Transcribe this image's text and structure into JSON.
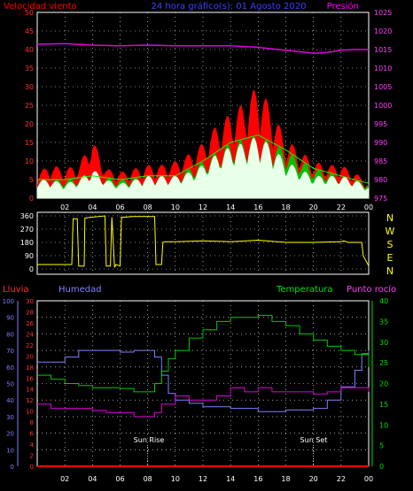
{
  "chart_data": [
    {
      "type": "line",
      "title": "24 hora gráfico(s): 01 Agosto 2020",
      "left_label": "Velocidad viento",
      "right_label": "Presión",
      "x_ticks": [
        "02",
        "04",
        "06",
        "08",
        "10",
        "12",
        "14",
        "16",
        "18",
        "20",
        "22",
        "00"
      ],
      "y_left_ticks": [
        "0",
        "5",
        "10",
        "15",
        "20",
        "25",
        "30",
        "35",
        "40",
        "45",
        "50"
      ],
      "y_right_ticks": [
        "975",
        "980",
        "985",
        "990",
        "995",
        "1000",
        "1005",
        "1010",
        "1015",
        "1020",
        "1025"
      ],
      "ylim_left": [
        0,
        50
      ],
      "ylim_right": [
        975,
        1025
      ],
      "series": [
        {
          "name": "Presión",
          "color": "#e000e0",
          "axis": "right",
          "x": [
            0,
            2,
            4,
            6,
            8,
            10,
            12,
            14,
            16,
            17,
            18,
            19,
            20,
            21,
            22,
            23,
            24
          ],
          "y": [
            1016.4,
            1016.6,
            1016.2,
            1016.0,
            1016.2,
            1016.0,
            1016.0,
            1016.0,
            1015.6,
            1015.2,
            1014.8,
            1014.4,
            1014.0,
            1014.2,
            1014.8,
            1015.0,
            1015.0
          ]
        },
        {
          "color": "#ff0000",
          "axis": "left",
          "kind": "gust",
          "x": [
            0,
            1,
            2,
            3,
            4,
            5,
            6,
            7,
            8,
            9,
            10,
            11,
            12,
            13,
            14,
            15,
            16,
            17,
            18,
            19,
            20,
            21,
            22,
            23,
            24
          ],
          "y": [
            7,
            9,
            8,
            9,
            16,
            8,
            7,
            8,
            9,
            9,
            10,
            12,
            15,
            20,
            23,
            26,
            31,
            24,
            16,
            13,
            10,
            9,
            9,
            7,
            4
          ]
        },
        {
          "color": "#00e000",
          "axis": "left",
          "kind": "average",
          "x": [
            0,
            2,
            4,
            6,
            8,
            10,
            12,
            14,
            16,
            18,
            20,
            22,
            24
          ],
          "y": [
            5,
            5,
            6,
            5,
            6,
            6,
            10,
            15,
            17,
            13,
            8,
            6,
            4
          ]
        },
        {
          "color": "#e8ffe8",
          "axis": "left",
          "kind": "speed",
          "x": [
            0,
            1,
            2,
            3,
            4,
            5,
            6,
            7,
            8,
            9,
            10,
            11,
            12,
            13,
            14,
            15,
            16,
            17,
            18,
            19,
            20,
            21,
            22,
            23,
            24
          ],
          "y": [
            5,
            5,
            4,
            5,
            8,
            5,
            4,
            5,
            6,
            6,
            6,
            7,
            9,
            12,
            14,
            15,
            17,
            14,
            10,
            8,
            6,
            6,
            6,
            5,
            3
          ]
        }
      ]
    },
    {
      "type": "line",
      "y_ticks": [
        "360",
        "270",
        "180",
        "90",
        "0"
      ],
      "ylim": [
        0,
        360
      ],
      "compass": [
        "N",
        "W",
        "S",
        "E",
        "N"
      ],
      "series": [
        {
          "color": "#ffff00",
          "x": [
            0,
            2.5,
            2.6,
            2.9,
            3.0,
            3.4,
            3.45,
            3.8,
            4.9,
            5.0,
            5.3,
            5.4,
            5.6,
            5.7,
            6.0,
            6.1,
            6.9,
            8.5,
            8.6,
            9.0,
            9.1,
            9.2,
            10,
            12,
            14,
            16,
            18,
            20,
            22,
            22.2,
            22.5,
            23.5,
            23.6,
            24
          ],
          "y": [
            30,
            30,
            340,
            340,
            20,
            20,
            345,
            350,
            360,
            20,
            20,
            350,
            10,
            30,
            20,
            350,
            355,
            355,
            30,
            30,
            180,
            185,
            185,
            190,
            185,
            195,
            180,
            180,
            185,
            190,
            180,
            180,
            90,
            20
          ]
        }
      ]
    },
    {
      "type": "line",
      "left_label": "Lluvia",
      "left_label2": "Humedad",
      "right_label": "Temperatura",
      "right_label2": "Punto rocío",
      "x_ticks": [
        "02",
        "04",
        "06",
        "08",
        "10",
        "12",
        "14",
        "16",
        "18",
        "20",
        "22",
        "00"
      ],
      "y_humidity_ticks": [
        "0",
        "10",
        "20",
        "30",
        "40",
        "50",
        "60",
        "70",
        "80",
        "90",
        "100"
      ],
      "y_rain_ticks": [
        "0",
        "2",
        "4",
        "6",
        "8",
        "10",
        "12",
        "14",
        "16",
        "18",
        "20",
        "22",
        "24",
        "26",
        "28",
        "30"
      ],
      "y_temp_ticks": [
        "0",
        "5",
        "10",
        "15",
        "20",
        "25",
        "30",
        "35",
        "40"
      ],
      "annotations": [
        {
          "text": "Sun Rise",
          "x": 8
        },
        {
          "text": "Sun Set",
          "x": 20
        }
      ],
      "series": [
        {
          "name": "Humedad",
          "color": "#8080ff",
          "axis": "humidity",
          "x": [
            0,
            1,
            2,
            3,
            4,
            5,
            6,
            7,
            8,
            8.5,
            9,
            9.5,
            10,
            11,
            12,
            14,
            16,
            18,
            20,
            21,
            22,
            23,
            23.5,
            24
          ],
          "y": [
            63,
            63,
            66,
            70,
            70,
            70,
            69,
            70,
            70,
            66,
            55,
            44,
            40,
            38,
            36,
            35,
            33,
            34,
            35,
            40,
            48,
            58,
            68,
            70
          ]
        },
        {
          "name": "Temperatura",
          "color": "#00c800",
          "axis": "temp",
          "x": [
            0,
            1,
            2,
            3,
            4,
            5,
            6,
            7,
            8,
            8.5,
            9,
            9.5,
            10,
            11,
            12,
            13,
            14,
            15,
            16,
            17,
            18,
            19,
            20,
            21,
            22,
            23,
            24
          ],
          "y": [
            22,
            21,
            20,
            19.5,
            19,
            19,
            18.8,
            18,
            18,
            20,
            23,
            26,
            28,
            31,
            33,
            35,
            36,
            36,
            36.5,
            35,
            34,
            32,
            30.5,
            29,
            28,
            27,
            24
          ]
        },
        {
          "name": "Punto rocío",
          "color": "#e000e0",
          "axis": "temp",
          "x": [
            0,
            1,
            2,
            3,
            4,
            5,
            6,
            7,
            8,
            8.5,
            9,
            10,
            11,
            12,
            13,
            14,
            15,
            16,
            17,
            18,
            19,
            20,
            21,
            22,
            23,
            23.5,
            24
          ],
          "y": [
            15,
            14,
            14,
            14,
            13.5,
            13,
            13,
            12,
            12,
            13,
            15,
            17,
            16,
            16,
            17,
            19,
            18,
            19,
            18,
            18,
            18,
            17.5,
            18,
            19,
            19,
            19,
            18
          ]
        },
        {
          "name": "Lluvia",
          "color": "#ff0000",
          "axis": "rain",
          "x": [
            0,
            24
          ],
          "y": [
            0,
            0
          ]
        }
      ]
    }
  ]
}
